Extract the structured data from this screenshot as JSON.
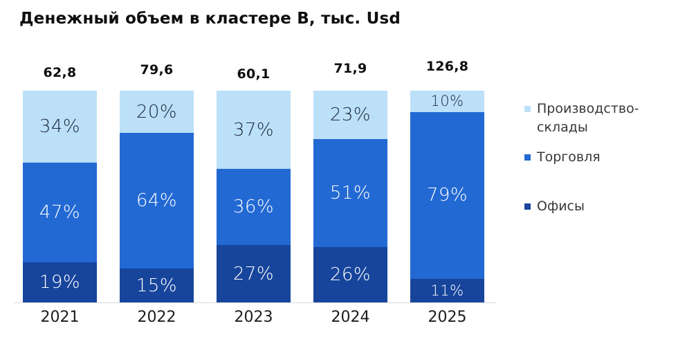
{
  "chart_data": {
    "type": "bar",
    "variant": "stacked-100-percent",
    "title": "Денежный объем в кластере В, тыс. Usd",
    "categories": [
      "2021",
      "2022",
      "2023",
      "2024",
      "2025"
    ],
    "totals": [
      "62,8",
      "79,6",
      "60,1",
      "71,9",
      "126,8"
    ],
    "series": [
      {
        "name": "Производство-склады",
        "color": "#BCE0F8",
        "label_color": "#1B2A3A",
        "values": [
          34,
          20,
          37,
          23,
          10
        ]
      },
      {
        "name": "Торговля",
        "color": "#2269D3",
        "label_color": "#FFFFFF",
        "values": [
          47,
          64,
          36,
          51,
          79
        ]
      },
      {
        "name": "Офисы",
        "color": "#17459C",
        "label_color": "#FFFFFF",
        "values": [
          19,
          15,
          27,
          26,
          11
        ]
      }
    ],
    "value_suffix": "%",
    "legend_position": "right",
    "grid": false,
    "background": "#FFFFFF",
    "axis_line_color": "#D9D9D9",
    "ylim": [
      0,
      100
    ]
  }
}
